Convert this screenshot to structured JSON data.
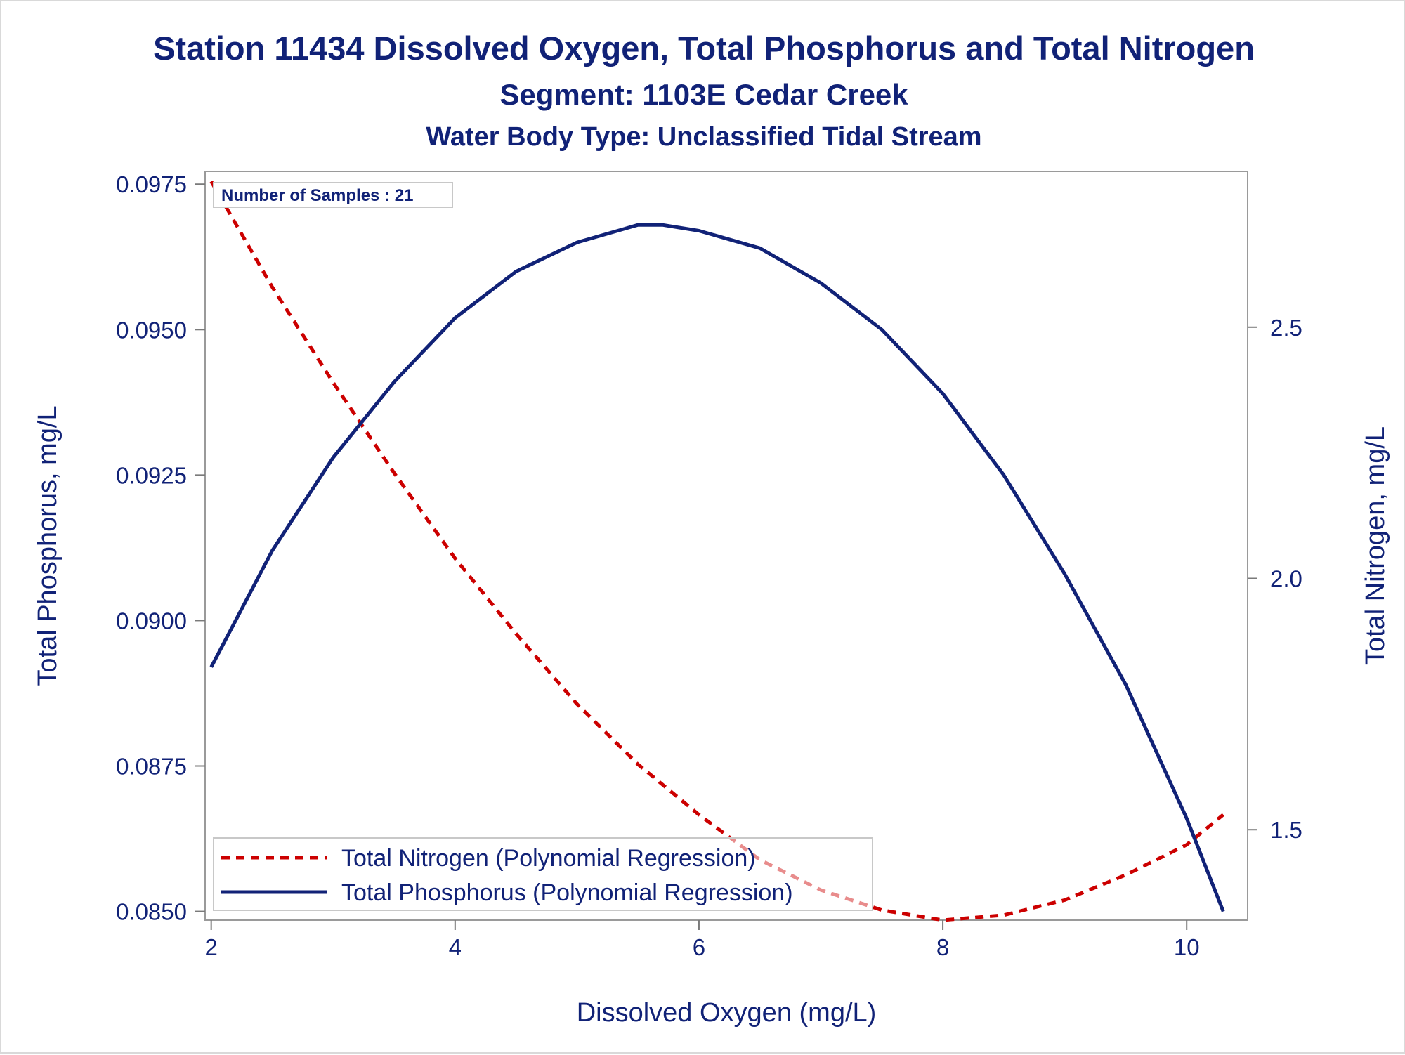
{
  "chart_data": {
    "type": "line",
    "title": "Station 11434  Dissolved Oxygen, Total Phosphorus and Total Nitrogen",
    "subtitle": "Segment: 1103E  Cedar Creek",
    "subtitle2": "Water Body Type: Unclassified Tidal Stream",
    "xlabel": "Dissolved Oxygen (mg/L)",
    "ylabel_left": "Total Phosphorus, mg/L",
    "ylabel_right": "Total Nitrogen, mg/L",
    "xlim": [
      1.95,
      10.5
    ],
    "ylim_left": [
      0.08485,
      0.09772
    ],
    "ylim_right": [
      1.32,
      2.81
    ],
    "x_ticks": [
      "2",
      "4",
      "6",
      "8",
      "10"
    ],
    "y_left_ticks": [
      "0.0850",
      "0.0875",
      "0.0900",
      "0.0925",
      "0.0950",
      "0.0975"
    ],
    "y_right_ticks": [
      "1.5",
      "2.0",
      "2.5"
    ],
    "inset_label": "Number of Samples : 21",
    "legend_position": "bottom-left",
    "series": [
      {
        "name": "Total Nitrogen (Polynomial Regression)",
        "axis": "right",
        "style": "dashed",
        "color": "#cc0000",
        "x": [
          2.0,
          2.5,
          3.0,
          3.5,
          4.0,
          4.5,
          5.0,
          5.5,
          6.0,
          6.5,
          7.0,
          7.5,
          8.0,
          8.5,
          9.0,
          9.5,
          10.0,
          10.3
        ],
        "values": [
          2.79,
          2.58,
          2.39,
          2.21,
          2.04,
          1.89,
          1.75,
          1.63,
          1.53,
          1.44,
          1.38,
          1.34,
          1.32,
          1.33,
          1.36,
          1.41,
          1.47,
          1.53
        ]
      },
      {
        "name": "Total Phosphorus (Polynomial Regression)",
        "axis": "left",
        "style": "solid",
        "color": "#112277",
        "x": [
          2.0,
          2.5,
          3.0,
          3.5,
          4.0,
          4.5,
          5.0,
          5.5,
          5.7,
          6.0,
          6.5,
          7.0,
          7.5,
          8.0,
          8.5,
          9.0,
          9.5,
          10.0,
          10.3
        ],
        "values": [
          0.0892,
          0.0912,
          0.0928,
          0.0941,
          0.0952,
          0.096,
          0.0965,
          0.0968,
          0.0968,
          0.0967,
          0.0964,
          0.0958,
          0.095,
          0.0939,
          0.0925,
          0.0908,
          0.0889,
          0.0866,
          0.085
        ]
      }
    ]
  }
}
